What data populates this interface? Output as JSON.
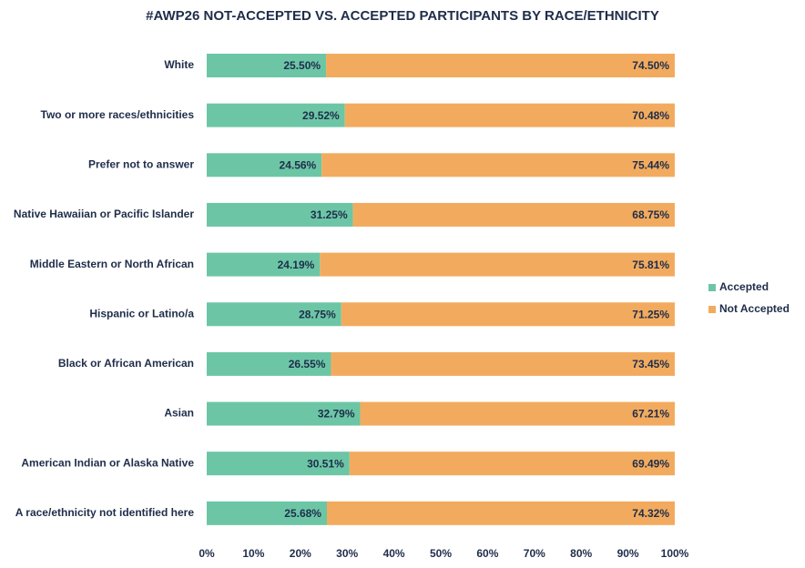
{
  "chart_data": {
    "type": "stacked-bar-horizontal",
    "title": "#AWP26 NOT-ACCEPTED VS. ACCEPTED PARTICIPANTS BY RACE/ETHNICITY",
    "categories": [
      "White",
      "Two or more races/ethnicities",
      "Prefer not to answer",
      "Native Hawaiian or Pacific Islander",
      "Middle Eastern or North African",
      "Hispanic or Latino/a",
      "Black or African American",
      "Asian",
      "American Indian or Alaska Native",
      "A race/ethnicity not identified here"
    ],
    "series": [
      {
        "name": "Accepted",
        "color": "#6cc6a5",
        "values": [
          25.5,
          29.52,
          24.56,
          31.25,
          24.19,
          28.75,
          26.55,
          32.79,
          30.51,
          25.68
        ],
        "value_labels": [
          "25.50%",
          "29.52%",
          "24.56%",
          "31.25%",
          "24.19%",
          "28.75%",
          "26.55%",
          "32.79%",
          "30.51%",
          "25.68%"
        ]
      },
      {
        "name": "Not Accepted",
        "color": "#f2ab5e",
        "values": [
          74.5,
          70.48,
          75.44,
          68.75,
          75.81,
          71.25,
          73.45,
          67.21,
          69.49,
          74.32
        ],
        "value_labels": [
          "74.50%",
          "70.48%",
          "75.44%",
          "68.75%",
          "75.81%",
          "71.25%",
          "73.45%",
          "67.21%",
          "69.49%",
          "74.32%"
        ]
      }
    ],
    "xlim": [
      0,
      100
    ],
    "xticks": [
      {
        "value": 0,
        "label": "0%"
      },
      {
        "value": 10,
        "label": "10%"
      },
      {
        "value": 20,
        "label": "20%"
      },
      {
        "value": 30,
        "label": "30%"
      },
      {
        "value": 40,
        "label": "40%"
      },
      {
        "value": 50,
        "label": "50%"
      },
      {
        "value": 60,
        "label": "60%"
      },
      {
        "value": 70,
        "label": "70%"
      },
      {
        "value": 80,
        "label": "80%"
      },
      {
        "value": 90,
        "label": "90%"
      },
      {
        "value": 100,
        "label": "100%"
      }
    ],
    "legend": "right"
  }
}
